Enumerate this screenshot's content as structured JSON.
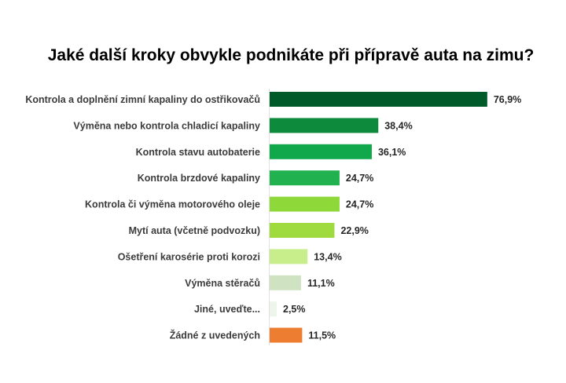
{
  "chart_data": {
    "type": "bar",
    "orientation": "horizontal",
    "title": "Jaké další kroky obvykle podnikáte při přípravě auta na zimu?",
    "categories": [
      "Kontrola a doplnění zimní kapaliny do ostřikovačů",
      "Výměna nebo kontrola chladicí kapaliny",
      "Kontrola stavu autobaterie",
      "Kontrola brzdové kapaliny",
      "Kontrola či výměna motorového oleje",
      "Mytí auta (včetně podvozku)",
      "Ošetření karosérie proti korozi",
      "Výměna stěračů",
      "Jiné, uveďte...",
      "Žádné z uvedených"
    ],
    "values": [
      76.9,
      38.4,
      36.1,
      24.7,
      24.7,
      22.9,
      13.4,
      11.1,
      2.5,
      11.5
    ],
    "value_labels": [
      "76,9%",
      "38,4%",
      "36,1%",
      "24,7%",
      "24,7%",
      "22,9%",
      "13,4%",
      "11,1%",
      "2,5%",
      "11,5%"
    ],
    "colors": [
      "#005a2a",
      "#0e8a3c",
      "#10a84a",
      "#21b24f",
      "#8fd83a",
      "#9fdb3e",
      "#c8ee8c",
      "#cfe3c3",
      "#eef5ea",
      "#ed7d31"
    ],
    "xlim": [
      0,
      100
    ],
    "axis_visible": false,
    "grid": false,
    "legend": "none"
  }
}
